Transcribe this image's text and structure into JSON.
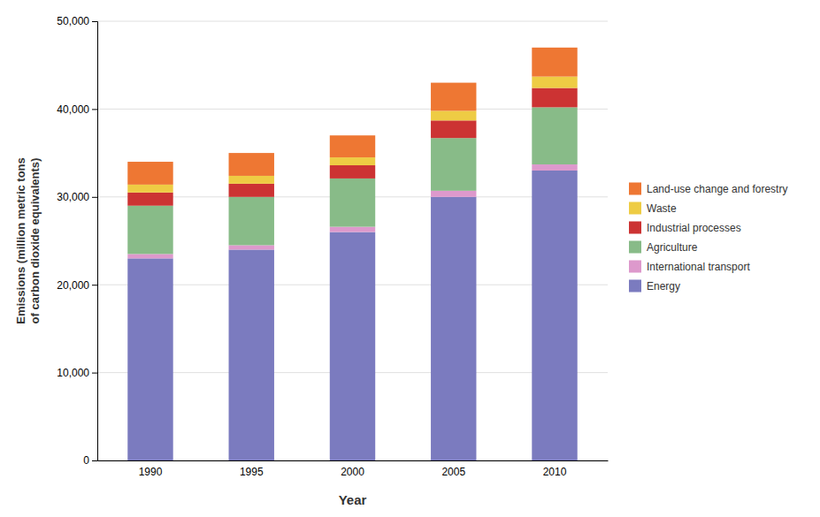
{
  "chart_data": {
    "type": "bar",
    "stacked": true,
    "categories": [
      "1990",
      "1995",
      "2000",
      "2005",
      "2010"
    ],
    "series": [
      {
        "name": "Energy",
        "color": "#7b7bbf",
        "values": [
          23000,
          24000,
          26000,
          30000,
          33000
        ]
      },
      {
        "name": "International transport",
        "color": "#dd99cc",
        "values": [
          500,
          500,
          600,
          700,
          700
        ]
      },
      {
        "name": "Agriculture",
        "color": "#88bb88",
        "values": [
          5500,
          5500,
          5500,
          6000,
          6500
        ]
      },
      {
        "name": "Industrial processes",
        "color": "#cc3333",
        "values": [
          1500,
          1500,
          1500,
          2000,
          2200
        ]
      },
      {
        "name": "Waste",
        "color": "#eecc44",
        "values": [
          900,
          900,
          900,
          1100,
          1300
        ]
      },
      {
        "name": "Land-use change and forestry",
        "color": "#ee7733",
        "values": [
          2600,
          2600,
          2500,
          3200,
          3300
        ]
      }
    ],
    "x_label": "Year",
    "y_label": "Emissions (million metric tons\nof carbon dioxide equivalents)",
    "ylim": [
      0,
      50000
    ],
    "yticks": [
      0,
      {
        "value": 10000,
        "label": "10,000"
      },
      {
        "value": 20000,
        "label": "20,000"
      },
      {
        "value": 30000,
        "label": "30,000"
      },
      {
        "value": 40000,
        "label": "40,000"
      },
      {
        "value": 50000,
        "label": "50,000"
      }
    ],
    "grid": true,
    "legend": "right"
  }
}
